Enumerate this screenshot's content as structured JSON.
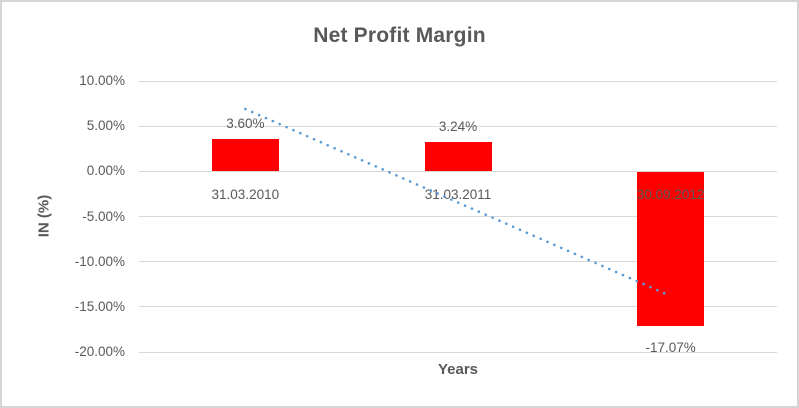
{
  "colors": {
    "bar": "#ff0000",
    "trendline": "#5b9bd5",
    "text": "#595959",
    "gridline": "#d9d9d9",
    "border": "#d5d5d5",
    "background": "#ffffff"
  },
  "chart_data": {
    "type": "bar",
    "title": "Net Profit Margin",
    "xlabel": "Years",
    "ylabel": "IN (%)",
    "categories": [
      "31.03.2010",
      "31.03.2011",
      "30.09.2012"
    ],
    "values": [
      3.6,
      3.24,
      -17.07
    ],
    "data_labels": [
      "3.60%",
      "3.24%",
      "-17.07%"
    ],
    "y_ticks": [
      10,
      5,
      0,
      -5,
      -10,
      -15,
      -20
    ],
    "y_tick_labels": [
      "10.00%",
      "5.00%",
      "0.00%",
      "-5.00%",
      "-10.00%",
      "-15.00%",
      "-20.00%"
    ],
    "ylim": [
      -20,
      10
    ],
    "grid": true,
    "legend": false,
    "trendline": {
      "type": "linear",
      "style": "dotted",
      "start_category_index": 0,
      "end_category_index": 2,
      "start_value": 6.9,
      "end_value": -13.8
    }
  }
}
